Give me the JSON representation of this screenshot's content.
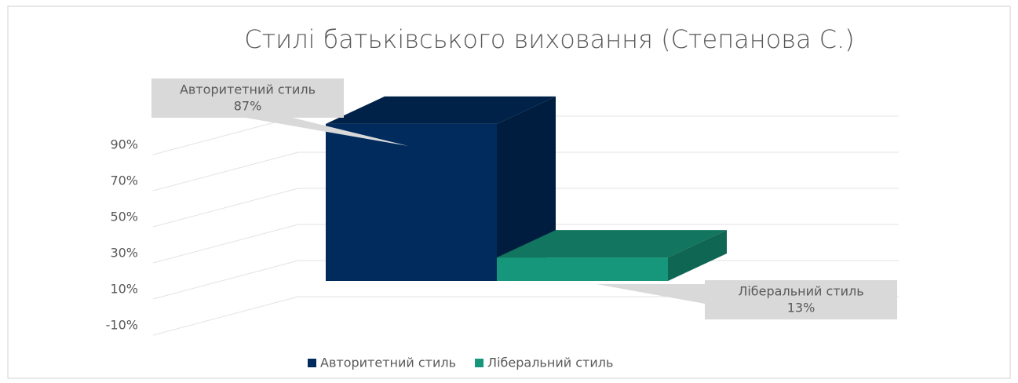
{
  "chart_data": {
    "type": "bar3d",
    "title": "Стилі батьківського виховання (Степанова С.)",
    "series": [
      {
        "name": "Авторитетний стиль",
        "color": "#002b5c",
        "values": [
          87
        ],
        "value_labels": [
          "87%"
        ]
      },
      {
        "name": "Ліберальний стиль",
        "color": "#16967a",
        "values": [
          13
        ],
        "value_labels": [
          "13%"
        ]
      }
    ],
    "ylim": [
      -10,
      100
    ],
    "yticks": [
      {
        "value": -10,
        "label": "-10%"
      },
      {
        "value": 10,
        "label": "10%"
      },
      {
        "value": 30,
        "label": "30%"
      },
      {
        "value": 50,
        "label": "50%"
      },
      {
        "value": 70,
        "label": "70%"
      },
      {
        "value": 90,
        "label": "90%"
      }
    ],
    "grid": true,
    "legend": "bottom"
  }
}
